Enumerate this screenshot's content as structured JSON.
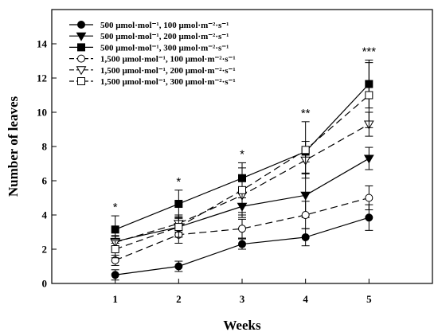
{
  "chart_data": {
    "type": "line",
    "xlabel": "Weeks",
    "ylabel": "Number of leaves",
    "x": [
      1,
      2,
      3,
      4,
      5
    ],
    "xlim": [
      0,
      6
    ],
    "ylim": [
      0,
      16
    ],
    "xticks": [
      "1",
      "2",
      "3",
      "4",
      "5"
    ],
    "yticks": [
      "0",
      "2",
      "4",
      "6",
      "8",
      "10",
      "12",
      "14"
    ],
    "grid": false,
    "legend_position": "top-left",
    "significance": [
      "*",
      "*",
      "*",
      "**",
      "***"
    ],
    "series": [
      {
        "name": "500 μmol·mol⁻¹, 100 μmol·m⁻²·s⁻¹",
        "marker": "circle",
        "filled": true,
        "dash": "solid",
        "values": [
          0.5,
          1.0,
          2.3,
          2.7,
          3.85
        ],
        "errors": [
          0.3,
          0.3,
          0.3,
          0.5,
          0.75
        ]
      },
      {
        "name": "500 μmol·mol⁻¹, 200 μmol·m⁻²·s⁻¹",
        "marker": "triangle-down",
        "filled": true,
        "dash": "solid",
        "values": [
          2.45,
          3.3,
          4.5,
          5.15,
          7.3
        ],
        "errors": [
          0.3,
          0.5,
          0.5,
          1.3,
          0.65
        ]
      },
      {
        "name": "500 μmol·mol⁻¹, 300 μmol·m⁻²·s⁻¹",
        "marker": "square",
        "filled": true,
        "dash": "solid",
        "values": [
          3.15,
          4.65,
          6.15,
          7.7,
          11.65
        ],
        "errors": [
          0.8,
          0.8,
          0.6,
          0.6,
          1.4
        ]
      },
      {
        "name": "1,500 μmol·mol⁻¹, 100 μmol·m⁻²·s⁻¹",
        "marker": "circle",
        "filled": false,
        "dash": "dashed",
        "values": [
          1.35,
          2.85,
          3.2,
          4.0,
          5.0
        ],
        "errors": [
          0.3,
          0.5,
          0.55,
          0.8,
          0.7
        ]
      },
      {
        "name": "1,500 μmol·mol⁻¹, 200 μmol·m⁻²·s⁻¹",
        "marker": "triangle-down",
        "filled": false,
        "dash": "dashed",
        "values": [
          2.4,
          3.5,
          5.15,
          7.2,
          9.3
        ],
        "errors": [
          0.4,
          0.5,
          1.0,
          0.8,
          0.7
        ]
      },
      {
        "name": "1,500 μmol·mol⁻¹, 300 μmol·m⁻²·s⁻¹",
        "marker": "square",
        "filled": false,
        "dash": "dashed",
        "values": [
          2.0,
          3.3,
          5.45,
          7.8,
          11.0
        ],
        "errors": [
          0.5,
          0.6,
          1.6,
          1.65,
          1.9
        ]
      }
    ]
  }
}
